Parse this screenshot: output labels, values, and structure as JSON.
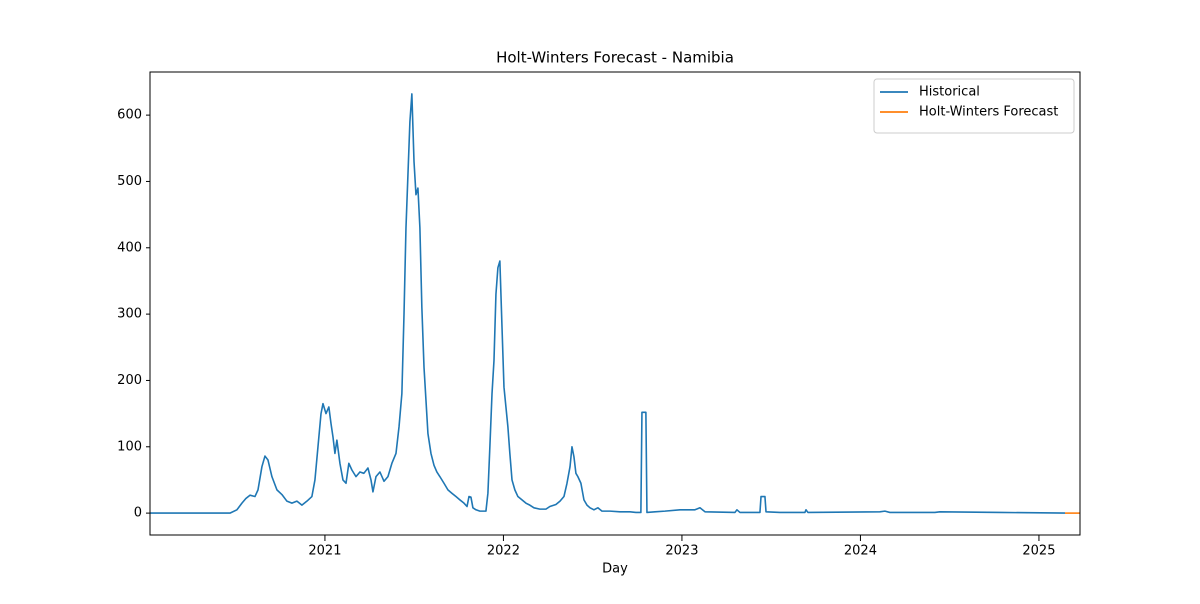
{
  "chart_data": {
    "type": "line",
    "title": "Holt-Winters Forecast - Namibia",
    "xlabel": "Day",
    "xlim": [
      2020.02,
      2025.23
    ],
    "ylim": [
      -33,
      665
    ],
    "xticks": [
      2021,
      2022,
      2023,
      2024,
      2025
    ],
    "yticks": [
      0,
      100,
      200,
      300,
      400,
      500,
      600
    ],
    "legend": "upper right",
    "series": [
      {
        "name": "Historical",
        "color": "#1f77b4",
        "x": [
          2020.02,
          2020.468,
          2020.507,
          2020.535,
          2020.557,
          2020.58,
          2020.608,
          2020.625,
          2020.647,
          2020.664,
          2020.681,
          2020.703,
          2020.731,
          2020.759,
          2020.787,
          2020.815,
          2020.843,
          2020.871,
          2020.899,
          2020.927,
          2020.944,
          2020.961,
          2020.978,
          2020.989,
          2021.006,
          2021.022,
          2021.034,
          2021.045,
          2021.056,
          2021.067,
          2021.084,
          2021.101,
          2021.118,
          2021.134,
          2021.151,
          2021.174,
          2021.196,
          2021.218,
          2021.241,
          2021.258,
          2021.269,
          2021.286,
          2021.308,
          2021.331,
          2021.353,
          2021.375,
          2021.398,
          2021.415,
          2021.431,
          2021.443,
          2021.454,
          2021.465,
          2021.476,
          2021.487,
          2021.499,
          2021.51,
          2021.521,
          2021.532,
          2021.543,
          2021.555,
          2021.566,
          2021.577,
          2021.594,
          2021.611,
          2021.627,
          2021.644,
          2021.667,
          2021.689,
          2021.711,
          2021.734,
          2021.756,
          2021.779,
          2021.796,
          2021.807,
          2021.818,
          2021.829,
          2021.846,
          2021.868,
          2021.902,
          2021.913,
          2021.924,
          2021.936,
          2021.947,
          2021.958,
          2021.969,
          2021.98,
          2021.992,
          2022.003,
          2022.014,
          2022.025,
          2022.036,
          2022.048,
          2022.064,
          2022.081,
          2022.104,
          2022.126,
          2022.148,
          2022.171,
          2022.204,
          2022.238,
          2022.26,
          2022.294,
          2022.317,
          2022.339,
          2022.356,
          2022.373,
          2022.384,
          2022.395,
          2022.406,
          2022.417,
          2022.434,
          2022.451,
          2022.468,
          2022.485,
          2022.507,
          2022.529,
          2022.552,
          2022.597,
          2022.653,
          2022.709,
          2022.742,
          2022.77,
          2022.776,
          2022.798,
          2022.804,
          2022.849,
          2022.905,
          2022.989,
          2023.073,
          2023.101,
          2023.129,
          2023.297,
          2023.308,
          2023.325,
          2023.437,
          2023.443,
          2023.465,
          2023.471,
          2023.549,
          2023.689,
          2023.695,
          2023.706,
          2024.109,
          2024.137,
          2024.165,
          2024.417,
          2024.445,
          2024.782,
          2025.146
        ],
        "values": [
          0,
          0,
          5,
          15,
          22,
          27,
          25,
          35,
          70,
          86,
          80,
          55,
          35,
          28,
          18,
          15,
          18,
          12,
          18,
          25,
          50,
          100,
          150,
          165,
          150,
          160,
          135,
          115,
          90,
          110,
          75,
          50,
          45,
          75,
          65,
          55,
          62,
          60,
          68,
          50,
          32,
          55,
          62,
          48,
          55,
          75,
          90,
          130,
          180,
          300,
          430,
          510,
          590,
          632,
          530,
          480,
          490,
          430,
          310,
          220,
          170,
          120,
          90,
          72,
          62,
          55,
          45,
          35,
          30,
          25,
          20,
          15,
          10,
          25,
          24,
          8,
          5,
          3,
          3,
          30,
          100,
          180,
          230,
          330,
          370,
          380,
          280,
          190,
          160,
          130,
          90,
          50,
          35,
          25,
          20,
          15,
          12,
          8,
          6,
          6,
          10,
          13,
          18,
          25,
          45,
          70,
          100,
          85,
          60,
          55,
          45,
          20,
          12,
          8,
          5,
          8,
          3,
          3,
          2,
          2,
          1,
          1,
          152,
          152,
          1,
          2,
          3,
          5,
          5,
          8,
          2,
          1,
          5,
          1,
          1,
          25,
          25,
          2,
          1,
          1,
          5,
          1,
          2,
          3,
          1,
          1,
          2,
          1,
          0
        ]
      },
      {
        "name": "Holt-Winters Forecast",
        "color": "#ff7f0e",
        "x": [
          2025.146,
          2025.23
        ],
        "values": [
          0,
          0
        ]
      }
    ]
  }
}
